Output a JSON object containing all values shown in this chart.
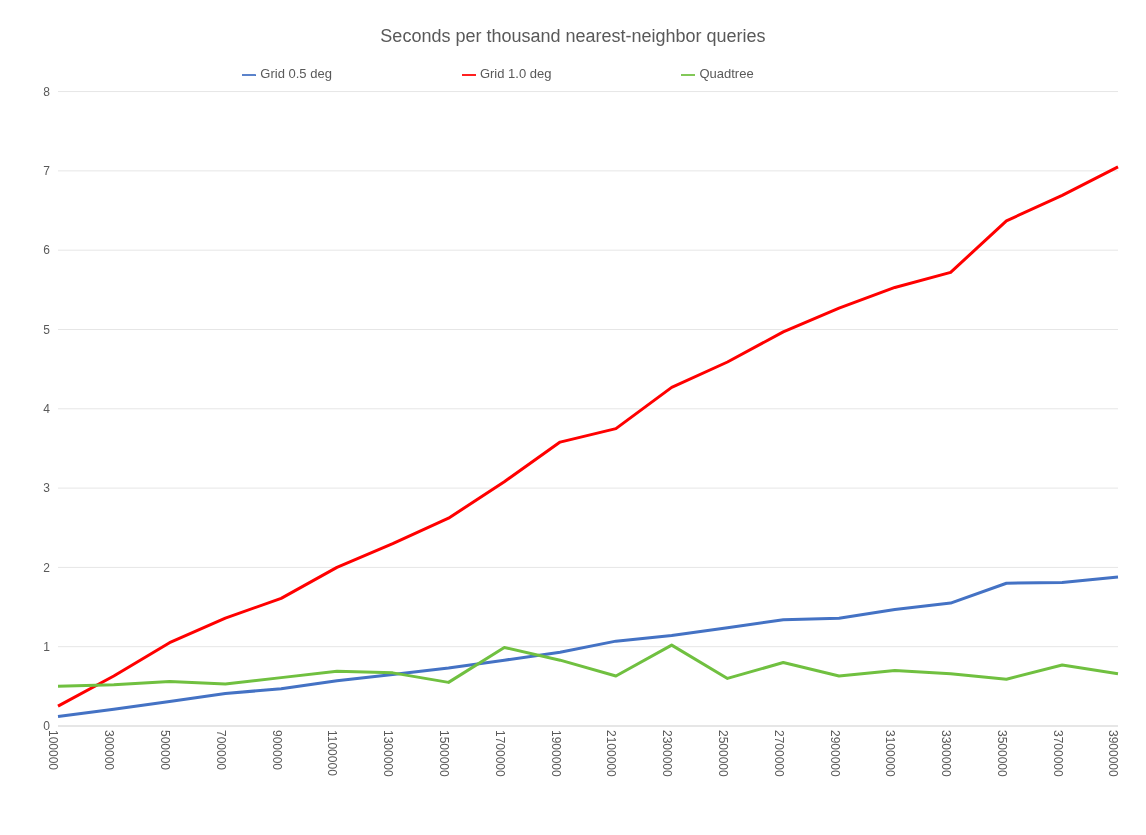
{
  "chart_data": {
    "type": "line",
    "title": "Seconds per thousand nearest-neighbor queries",
    "categories": [
      "100000",
      "300000",
      "500000",
      "700000",
      "900000",
      "1100000",
      "1300000",
      "1500000",
      "1700000",
      "1900000",
      "2100000",
      "2300000",
      "2500000",
      "2700000",
      "2900000",
      "3100000",
      "3300000",
      "3500000",
      "3700000",
      "3900000"
    ],
    "series": [
      {
        "name": "Grid 1.0 deg",
        "color": "#ff0000",
        "values": [
          0.25,
          0.63,
          1.05,
          1.36,
          1.61,
          2.0,
          2.3,
          2.62,
          3.08,
          3.58,
          3.75,
          4.27,
          4.59,
          4.97,
          5.27,
          5.53,
          5.72,
          6.37,
          6.69,
          7.05
        ]
      },
      {
        "name": "Grid 0.5 deg",
        "color": "#4472c4",
        "values": [
          0.12,
          0.21,
          0.31,
          0.41,
          0.47,
          0.57,
          0.65,
          0.73,
          0.83,
          0.93,
          1.07,
          1.14,
          1.24,
          1.34,
          1.36,
          1.47,
          1.55,
          1.8,
          1.81,
          1.88
        ]
      },
      {
        "name": "Quadtree",
        "color": "#70c040",
        "values": [
          0.5,
          0.52,
          0.56,
          0.53,
          0.61,
          0.69,
          0.67,
          0.55,
          0.99,
          0.83,
          0.63,
          1.02,
          0.6,
          0.8,
          0.63,
          0.7,
          0.66,
          0.59,
          0.77,
          0.66
        ]
      }
    ],
    "ylim": [
      0,
      8
    ],
    "yticks": [
      0,
      1,
      2,
      3,
      4,
      5,
      6,
      7,
      8
    ],
    "grid": "y",
    "legend": "top",
    "marker": "none",
    "line_style": "solid"
  }
}
